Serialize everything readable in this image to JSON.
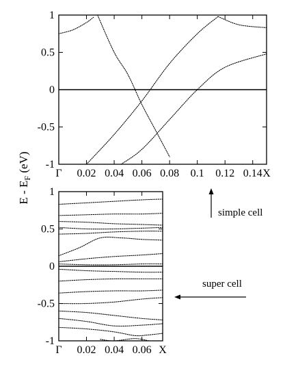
{
  "ylabel": "E - E",
  "ylabel_sub": "F",
  "ylabel_unit": " (eV)",
  "chart_data": [
    {
      "type": "line",
      "panel": "top",
      "annotation": "simple cell",
      "x_ticks": [
        "Γ",
        "0.02",
        "0.04",
        "0.06",
        "0.08",
        "0.1",
        "0.12",
        "0.14",
        "X"
      ],
      "x_tick_values": [
        0,
        0.02,
        0.04,
        0.06,
        0.08,
        0.1,
        0.12,
        0.14,
        0.15
      ],
      "y_ticks": [
        "-1",
        "-0.5",
        "0",
        "0.5",
        "1"
      ],
      "y_tick_values": [
        -1,
        -0.5,
        0,
        0.5,
        1
      ],
      "xlim": [
        0,
        0.15
      ],
      "ylim": [
        -1,
        1
      ],
      "fermi_level": 0,
      "series": [
        {
          "x": [
            0,
            0.01,
            0.02,
            0.025
          ],
          "y": [
            0.75,
            0.8,
            0.9,
            0.97
          ]
        },
        {
          "x": [
            0.028,
            0.04,
            0.05,
            0.06,
            0.07,
            0.08
          ],
          "y": [
            1.0,
            0.5,
            0.2,
            -0.2,
            -0.55,
            -0.9
          ]
        },
        {
          "x": [
            0.02,
            0.04,
            0.06,
            0.08,
            0.1,
            0.115
          ],
          "y": [
            -1.0,
            -0.6,
            -0.15,
            0.35,
            0.75,
            0.98
          ]
        },
        {
          "x": [
            0.115,
            0.13,
            0.15
          ],
          "y": [
            0.98,
            0.87,
            0.83
          ]
        },
        {
          "x": [
            0.045,
            0.06,
            0.08,
            0.1,
            0.12,
            0.15
          ],
          "y": [
            -1.0,
            -0.8,
            -0.4,
            0.0,
            0.3,
            0.48
          ]
        }
      ]
    },
    {
      "type": "line",
      "panel": "bottom",
      "annotation": "super cell",
      "x_ticks": [
        "Γ",
        "0.02",
        "0.04",
        "0.06",
        "X"
      ],
      "x_tick_values": [
        0,
        0.02,
        0.04,
        0.06,
        0.075
      ],
      "y_ticks": [
        "-1",
        "-0.5",
        "0",
        "0.5",
        "1"
      ],
      "y_tick_values": [
        -1,
        -0.5,
        0,
        0.5,
        1
      ],
      "xlim": [
        0,
        0.075
      ],
      "ylim": [
        -1,
        1
      ],
      "fermi_level": 0,
      "series": [
        {
          "x": [
            0,
            0.02,
            0.04,
            0.06,
            0.075
          ],
          "y": [
            0.83,
            0.85,
            0.87,
            0.89,
            0.9
          ]
        },
        {
          "x": [
            0,
            0.02,
            0.04,
            0.06,
            0.075
          ],
          "y": [
            0.68,
            0.69,
            0.7,
            0.7,
            0.71
          ]
        },
        {
          "x": [
            0,
            0.02,
            0.04,
            0.06,
            0.075
          ],
          "y": [
            0.6,
            0.59,
            0.57,
            0.56,
            0.55
          ]
        },
        {
          "x": [
            0,
            0.02,
            0.04,
            0.06,
            0.075
          ],
          "y": [
            0.52,
            0.5,
            0.5,
            0.51,
            0.52
          ]
        },
        {
          "x": [
            0,
            0.02,
            0.04,
            0.06,
            0.075
          ],
          "y": [
            0.43,
            0.44,
            0.46,
            0.47,
            0.47
          ]
        },
        {
          "x": [
            0,
            0.015,
            0.03,
            0.045,
            0.06,
            0.075
          ],
          "y": [
            0.14,
            0.25,
            0.38,
            0.38,
            0.36,
            0.35
          ]
        },
        {
          "x": [
            0,
            0.02,
            0.04,
            0.06,
            0.075
          ],
          "y": [
            0.06,
            0.1,
            0.13,
            0.15,
            0.17
          ]
        },
        {
          "x": [
            0,
            0.02,
            0.04,
            0.06,
            0.075
          ],
          "y": [
            0.03,
            0.02,
            0.02,
            0.03,
            0.03
          ]
        },
        {
          "x": [
            0,
            0.02,
            0.04,
            0.06,
            0.075
          ],
          "y": [
            -0.04,
            -0.06,
            -0.07,
            -0.08,
            -0.08
          ]
        },
        {
          "x": [
            0,
            0.02,
            0.04,
            0.06,
            0.075
          ],
          "y": [
            -0.2,
            -0.18,
            -0.17,
            -0.17,
            -0.17
          ]
        },
        {
          "x": [
            0,
            0.02,
            0.04,
            0.06,
            0.075
          ],
          "y": [
            -0.36,
            -0.34,
            -0.33,
            -0.33,
            -0.32
          ]
        },
        {
          "x": [
            0,
            0.02,
            0.04,
            0.06,
            0.075
          ],
          "y": [
            -0.5,
            -0.5,
            -0.48,
            -0.44,
            -0.42
          ]
        },
        {
          "x": [
            0,
            0.02,
            0.04,
            0.06,
            0.075
          ],
          "y": [
            -0.6,
            -0.62,
            -0.66,
            -0.7,
            -0.72
          ]
        },
        {
          "x": [
            0,
            0.02,
            0.04,
            0.06,
            0.075
          ],
          "y": [
            -0.7,
            -0.74,
            -0.8,
            -0.79,
            -0.77
          ]
        },
        {
          "x": [
            0,
            0.02,
            0.04,
            0.055,
            0.065,
            0.075
          ],
          "y": [
            -0.82,
            -0.84,
            -0.88,
            -0.93,
            -0.92,
            -0.9
          ]
        },
        {
          "x": [
            0.03,
            0.04,
            0.055,
            0.065
          ],
          "y": [
            -0.98,
            -1.0,
            -0.97,
            -1.0
          ]
        }
      ]
    }
  ]
}
